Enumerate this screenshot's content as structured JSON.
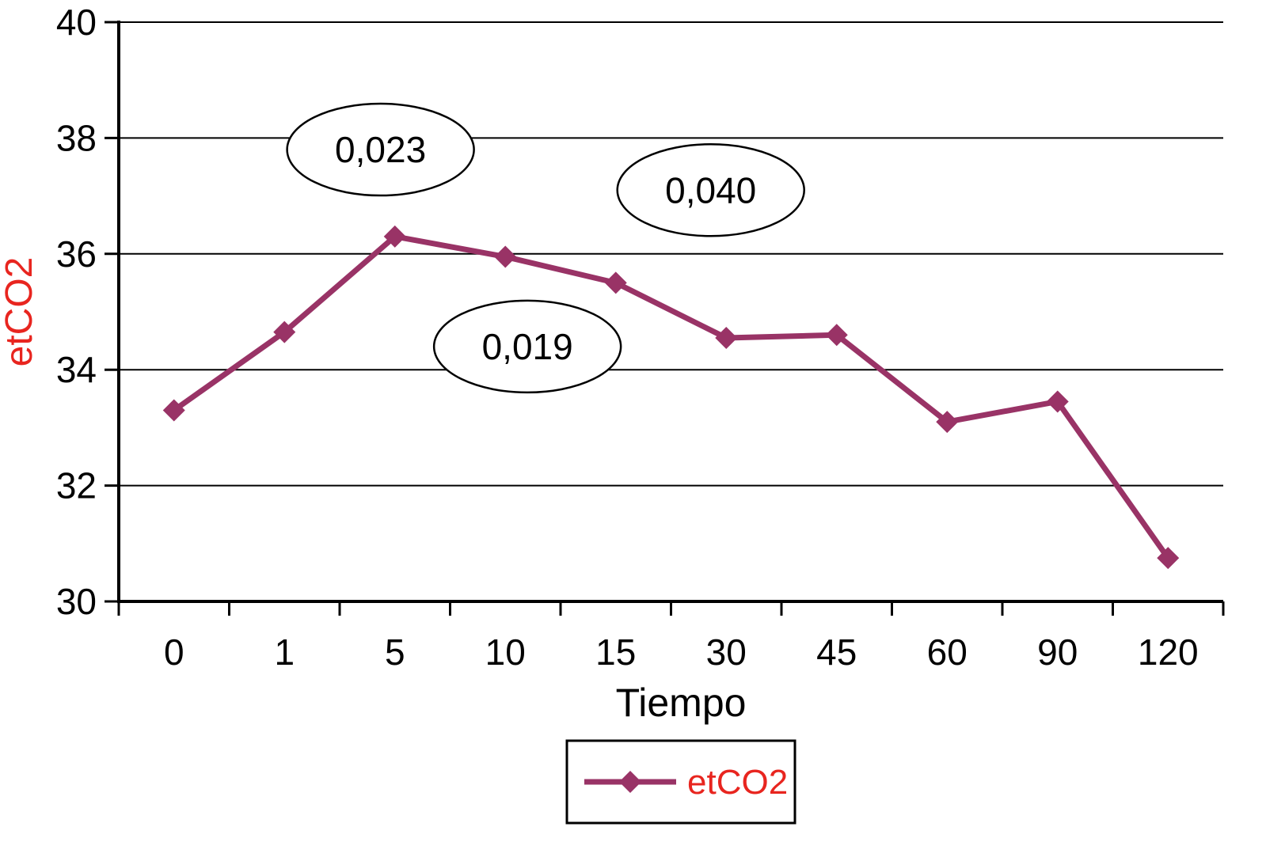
{
  "chart_data": {
    "type": "line",
    "title": "",
    "xlabel": "Tiempo",
    "ylabel": "etCO2",
    "categories": [
      "0",
      "1",
      "5",
      "10",
      "15",
      "30",
      "45",
      "60",
      "90",
      "120"
    ],
    "series": [
      {
        "name": "etCO2",
        "values": [
          33.3,
          34.65,
          36.3,
          35.95,
          35.5,
          34.55,
          34.6,
          33.1,
          33.45,
          30.75
        ]
      }
    ],
    "ylim": [
      30,
      40
    ],
    "ytick_step": 2,
    "yticks": [
      30,
      32,
      34,
      36,
      38,
      40
    ],
    "grid": true,
    "legend_position": "bottom",
    "legend_entries": [
      "etCO2"
    ],
    "annotations": [
      {
        "label": "0,023",
        "x_index": 1.87,
        "y": 37.8
      },
      {
        "label": "0,040",
        "x_index": 4.86,
        "y": 37.1
      },
      {
        "label": "0,019",
        "x_index": 3.2,
        "y": 34.4
      }
    ],
    "colors": {
      "series": "#993366",
      "axis_label": "#e8251f",
      "axis": "#000000",
      "grid": "#000000",
      "background": "#ffffff"
    }
  }
}
